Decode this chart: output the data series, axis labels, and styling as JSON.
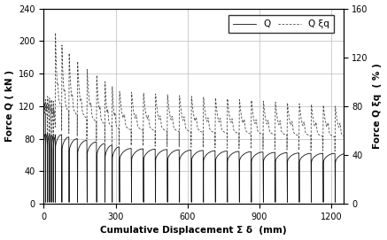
{
  "xlabel": "Cumulative Displacement Σ δ  (mm)",
  "ylabel_left": "Force Q ( kN )",
  "ylabel_right": "Force Q ξq  ( % )",
  "xlim": [
    0,
    1250
  ],
  "ylim_left": [
    0,
    240
  ],
  "ylim_right": [
    0,
    160
  ],
  "yticks_left": [
    0,
    40,
    80,
    120,
    160,
    200,
    240
  ],
  "yticks_right": [
    0,
    40,
    80,
    120,
    160
  ],
  "xticks": [
    0,
    300,
    600,
    900,
    1200
  ],
  "legend_Q": "Q",
  "legend_Qxq": "Q ξq",
  "line_color_Q": "#111111",
  "line_color_Qxq": "#444444",
  "background_color": "#ffffff",
  "grid_color": "#bbbbbb"
}
